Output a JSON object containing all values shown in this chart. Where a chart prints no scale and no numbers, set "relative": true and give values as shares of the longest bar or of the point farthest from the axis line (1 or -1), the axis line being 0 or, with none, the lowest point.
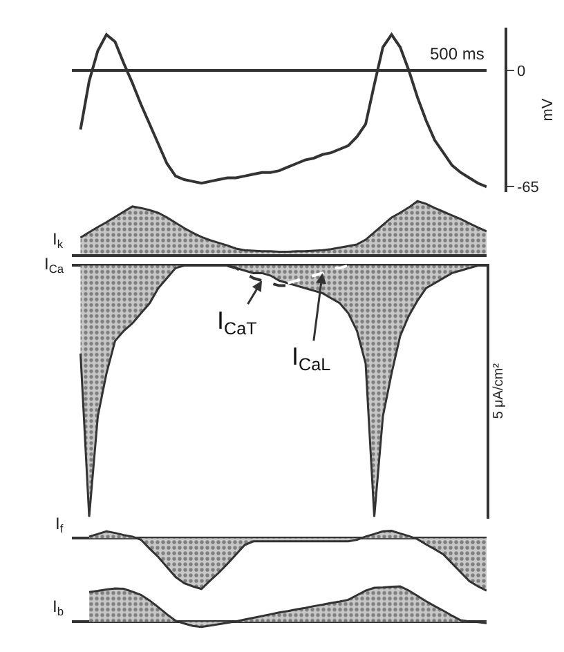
{
  "chart_data": [
    {
      "type": "line",
      "categories": [
        null,
        null,
        null,
        null,
        null,
        null,
        null,
        null,
        null,
        null,
        null,
        null,
        null,
        null,
        null,
        null,
        null,
        null,
        null,
        null,
        null,
        null,
        null,
        null,
        null,
        null,
        null,
        null,
        null,
        null,
        null,
        null,
        null,
        null,
        null,
        null,
        null,
        null,
        null,
        null,
        null,
        null,
        null,
        null,
        null,
        null,
        null,
        null,
        null
      ],
      "values": [
        null,
        -33,
        -6,
        11,
        20,
        16,
        4,
        -7,
        -19,
        -30,
        -41,
        -52,
        -59,
        -61,
        -62,
        -63,
        -62,
        -61,
        -60,
        -60,
        -59,
        -58,
        -57,
        -57,
        -56,
        -54,
        -52,
        -50,
        -49,
        -47,
        -46,
        -44,
        -42,
        -37,
        -30,
        -8,
        13,
        20,
        13,
        0,
        -15,
        -28,
        -39,
        -46,
        -53,
        -57,
        -60,
        -63,
        -65
      ],
      "color": "#333333",
      "ylim": [
        -68,
        24
      ],
      "yticks": [
        0,
        -65
      ],
      "ylabel": "mV",
      "tick_labels": "y",
      "ref_lines": [
        {
          "axis": "y",
          "value": 0,
          "label": "500 ms"
        }
      ]
    },
    {
      "type": "area",
      "relative": true,
      "ylabel": "I$_{k}$",
      "tick_labels": false,
      "categories": [
        null,
        null,
        null,
        null,
        null,
        null,
        null,
        null,
        null,
        null,
        null,
        null,
        null,
        null,
        null,
        null,
        null,
        null,
        null,
        null,
        null,
        null,
        null,
        null,
        null,
        null,
        null,
        null,
        null,
        null,
        null,
        null,
        null,
        null,
        null,
        null,
        null,
        null,
        null,
        null,
        null,
        null,
        null,
        null,
        null,
        null,
        null,
        null,
        null
      ],
      "values": [
        null,
        0.31,
        0.41,
        0.51,
        0.6,
        0.7,
        0.8,
        0.9,
        0.87,
        0.83,
        0.78,
        0.69,
        0.59,
        0.49,
        0.4,
        0.32,
        0.26,
        0.21,
        0.16,
        0.1,
        0.07,
        0.06,
        0.05,
        0.05,
        0.04,
        0.04,
        0.05,
        0.05,
        0.06,
        0.07,
        0.09,
        0.12,
        0.15,
        0.18,
        0.27,
        0.41,
        0.55,
        0.69,
        0.78,
        0.88,
        1,
        0.95,
        0.87,
        0.8,
        0.73,
        0.66,
        0.58,
        0.5,
        0.43
      ],
      "color": "#333333"
    },
    {
      "type": "area",
      "relative": true,
      "ylabel": "I$_{Ca}$",
      "y2label": "5 μA/cm²",
      "tick_labels": false,
      "categories": [
        null,
        null,
        null,
        null,
        null,
        null,
        null,
        null,
        null,
        null,
        null,
        null,
        null,
        null,
        null,
        null,
        null,
        null,
        null,
        null,
        null,
        null,
        null,
        null,
        null,
        null,
        null,
        null,
        null,
        null,
        null,
        null,
        null,
        null,
        null,
        null,
        null,
        null,
        null,
        null,
        null,
        null,
        null,
        null,
        null,
        null,
        null,
        null,
        null
      ],
      "series": [
        {
          "type": "area",
          "color": "#333333",
          "values": [
            null,
            -0.35,
            -1,
            -0.6,
            -0.43,
            -0.3,
            -0.26,
            -0.23,
            -0.19,
            -0.15,
            -0.09,
            -0.05,
            -0.01,
            0,
            0,
            0,
            0,
            0,
            0,
            -0.01,
            -0.02,
            -0.03,
            -0.03,
            -0.04,
            -0.06,
            -0.07,
            -0.08,
            -0.09,
            -0.1,
            -0.11,
            -0.13,
            -0.15,
            -0.19,
            -0.26,
            -0.39,
            -1,
            -0.6,
            -0.43,
            -0.28,
            -0.2,
            -0.14,
            -0.09,
            -0.07,
            -0.05,
            -0.03,
            -0.02,
            -0.01,
            0,
            0
          ]
        },
        {
          "type": "line",
          "line_style": "dashed",
          "color": "#333333",
          "values": [
            null,
            null,
            null,
            null,
            null,
            null,
            null,
            null,
            null,
            null,
            null,
            null,
            null,
            null,
            null,
            null,
            null,
            null,
            0,
            -0.01,
            -0.03,
            -0.05,
            -0.06,
            -0.07,
            -0.08,
            -0.08,
            null,
            null,
            null,
            null,
            null,
            null,
            null,
            null,
            null,
            null,
            null,
            null,
            null,
            null,
            null,
            null,
            null,
            null,
            null,
            null,
            null,
            null,
            null
          ]
        },
        {
          "type": "line",
          "line_style": "dashed",
          "color": "#ffffff",
          "values": [
            null,
            null,
            null,
            null,
            null,
            null,
            null,
            null,
            null,
            null,
            null,
            null,
            null,
            null,
            null,
            null,
            null,
            null,
            null,
            null,
            null,
            null,
            null,
            null,
            null,
            -0.07,
            -0.06,
            -0.05,
            -0.04,
            -0.03,
            -0.01,
            -0.01,
            0,
            null,
            null,
            null,
            null,
            null,
            null,
            null,
            null,
            null,
            null,
            null,
            null,
            null,
            null,
            null,
            null
          ]
        }
      ],
      "annotations": [
        "I$_{CaT}$",
        "I$_{CaL}$"
      ]
    },
    {
      "type": "area",
      "relative": true,
      "ylabel": "I$_{f}$",
      "tick_labels": false,
      "categories": [
        null,
        null,
        null,
        null,
        null,
        null,
        null,
        null,
        null,
        null,
        null,
        null,
        null,
        null,
        null,
        null,
        null,
        null,
        null,
        null,
        null,
        null,
        null,
        null,
        null,
        null,
        null,
        null,
        null,
        null,
        null,
        null,
        null,
        null,
        null,
        null,
        null,
        null,
        null,
        null,
        null,
        null,
        null,
        null,
        null,
        null,
        null,
        null,
        null
      ],
      "values": [
        null,
        null,
        0.03,
        0.08,
        0.13,
        0.1,
        0.06,
        0.03,
        -0.03,
        -0.2,
        -0.36,
        -0.55,
        -0.74,
        -0.86,
        -0.92,
        -0.97,
        -0.81,
        -0.66,
        -0.49,
        -0.31,
        -0.13,
        -0.06,
        -0.06,
        -0.06,
        -0.06,
        -0.06,
        -0.06,
        -0.06,
        -0.06,
        -0.06,
        -0.06,
        -0.06,
        -0.06,
        -0.03,
        0.03,
        0.08,
        0.13,
        0.14,
        0.09,
        0.04,
        -0.02,
        -0.12,
        -0.21,
        -0.31,
        -0.48,
        -0.65,
        -0.82,
        -0.92,
        -1
      ],
      "color": "#333333"
    },
    {
      "type": "area",
      "relative": true,
      "ylabel": "I$_{b}$",
      "tick_labels": false,
      "categories": [
        null,
        null,
        null,
        null,
        null,
        null,
        null,
        null,
        null,
        null,
        null,
        null,
        null,
        null,
        null,
        null,
        null,
        null,
        null,
        null,
        null,
        null,
        null,
        null,
        null,
        null,
        null,
        null,
        null,
        null,
        null,
        null,
        null,
        null,
        null,
        null,
        null,
        null,
        null,
        null,
        null,
        null,
        null,
        null,
        null,
        null,
        null,
        null,
        null
      ],
      "values": [
        null,
        null,
        0.84,
        0.87,
        0.91,
        0.94,
        0.93,
        0.85,
        0.76,
        0.6,
        0.41,
        0.21,
        0.03,
        -0.05,
        -0.12,
        -0.15,
        -0.11,
        -0.07,
        -0.03,
        0.01,
        0.06,
        0.11,
        0.16,
        0.21,
        0.26,
        0.3,
        0.35,
        0.39,
        0.44,
        0.48,
        0.53,
        0.57,
        0.62,
        0.75,
        0.88,
        0.96,
        0.97,
        0.99,
        1.0,
        0.88,
        0.73,
        0.58,
        0.44,
        0.31,
        0.17,
        0.04,
        0.01,
        -0.01,
        -0.04
      ],
      "color": "#333333"
    }
  ]
}
